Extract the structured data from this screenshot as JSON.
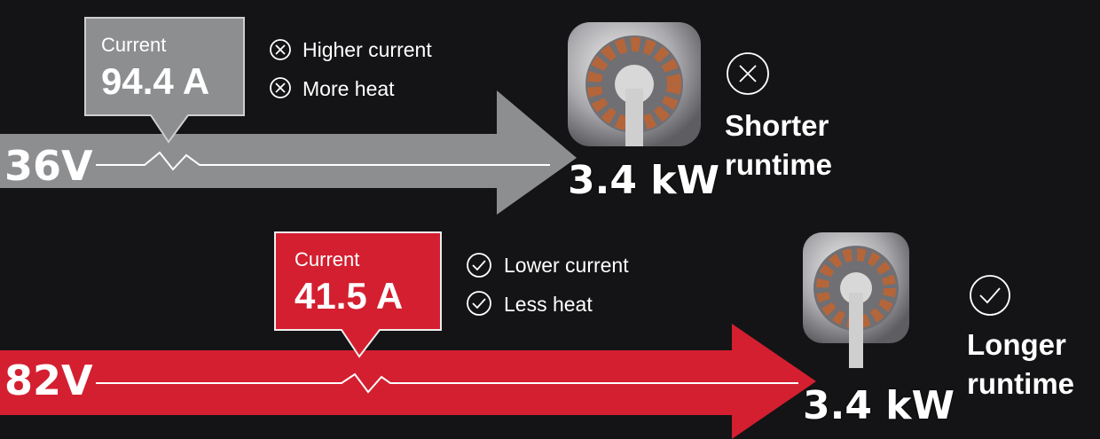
{
  "rows": [
    {
      "voltage": "36V",
      "current_label": "Current",
      "current": "94.4 A",
      "points": [
        "Higher current",
        "More heat"
      ],
      "power": "3.4 kW",
      "outcome": "Shorter runtime"
    },
    {
      "voltage": "82V",
      "current_label": "Current",
      "current": "41.5 A",
      "points": [
        "Lower current",
        "Less heat"
      ],
      "power": "3.4 kW",
      "outcome": "Longer runtime"
    }
  ]
}
